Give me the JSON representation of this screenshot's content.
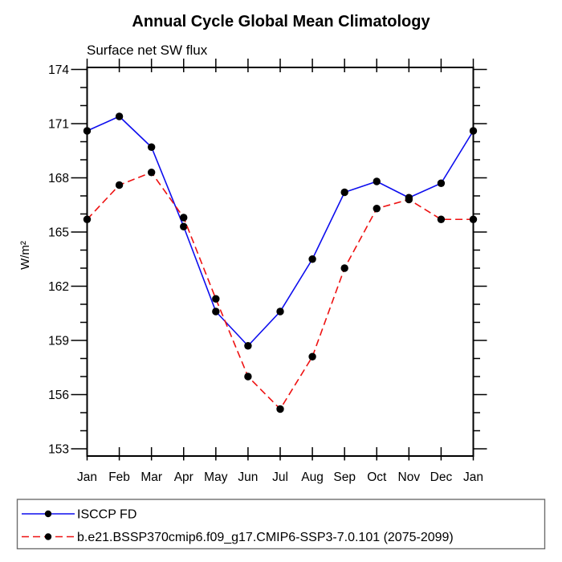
{
  "header": {
    "title": "Annual Cycle Global Mean Climatology",
    "subtitle": "Surface net SW flux"
  },
  "chart_data": {
    "type": "line",
    "title": "Annual Cycle Global Mean Climatology",
    "subtitle": "Surface net SW flux",
    "xlabel": "",
    "ylabel": "W/m²",
    "categories": [
      "Jan",
      "Feb",
      "Mar",
      "Apr",
      "May",
      "Jun",
      "Jul",
      "Aug",
      "Sep",
      "Oct",
      "Nov",
      "Dec",
      "Jan"
    ],
    "ylim": [
      153,
      174
    ],
    "ytick_major_step": 3,
    "ytick_minor_step": 1,
    "ytick_labels": [
      "153",
      "156",
      "159",
      "162",
      "165",
      "168",
      "171",
      "174"
    ],
    "grid": false,
    "legend_position": "bottom",
    "marker_color": "#000000",
    "series": [
      {
        "name": "ISCCP FD",
        "color": "#0d0dee",
        "line_style": "solid",
        "marker": "circle",
        "values": [
          170.6,
          171.4,
          169.7,
          165.3,
          160.6,
          158.7,
          160.6,
          163.5,
          167.2,
          167.8,
          166.9,
          167.7,
          170.6
        ]
      },
      {
        "name": "b.e21.BSSP370cmip6.f09_g17.CMIP6-SSP3-7.0.101 (2075-2099)",
        "color": "#ee1111",
        "line_style": "dashed",
        "marker": "circle",
        "values": [
          165.7,
          167.6,
          168.3,
          165.8,
          161.3,
          157.0,
          155.2,
          158.1,
          163.0,
          166.3,
          166.8,
          165.7,
          165.7
        ]
      }
    ]
  }
}
